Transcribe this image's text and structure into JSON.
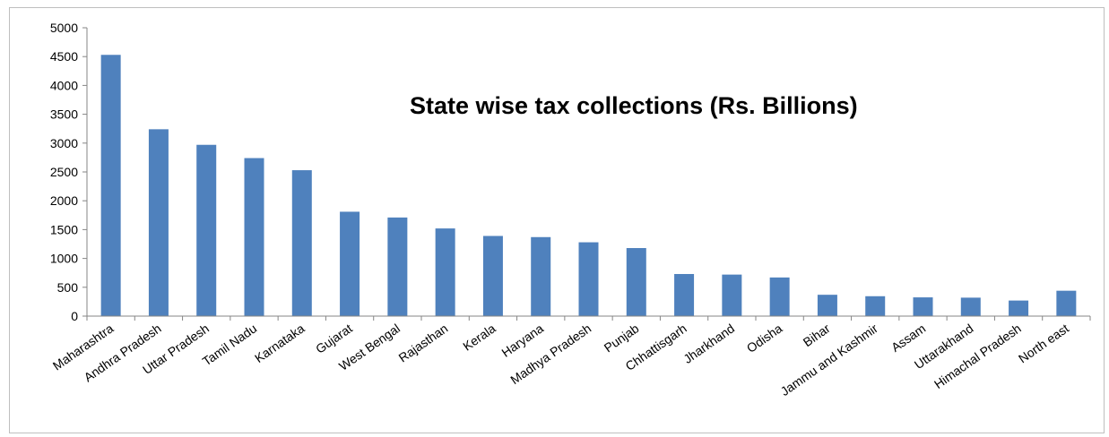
{
  "chart_data": {
    "type": "bar",
    "title": "State wise tax collections (Rs. Billions)",
    "xlabel": "",
    "ylabel": "",
    "ylim": [
      0,
      5000
    ],
    "yticks": [
      0,
      500,
      1000,
      1500,
      2000,
      2500,
      3000,
      3500,
      4000,
      4500,
      5000
    ],
    "grid": false,
    "legend": "none",
    "bar_color": "#4F81BD",
    "categories": [
      "Maharashtra",
      "Andhra Pradesh",
      "Uttar Pradesh",
      "Tamil Nadu",
      "Karnataka",
      "Gujarat",
      "West Bengal",
      "Rajasthan",
      "Kerala",
      "Haryana",
      "Madhya Pradesh",
      "Punjab",
      "Chhattisgarh",
      "Jharkhand",
      "Odisha",
      "Bihar",
      "Jammu and Kashmir",
      "Assam",
      "Uttarakhand",
      "Himachal Pradesh",
      "North east"
    ],
    "values": [
      4530,
      3240,
      2970,
      2740,
      2530,
      1810,
      1710,
      1520,
      1390,
      1370,
      1280,
      1180,
      730,
      720,
      670,
      370,
      345,
      325,
      320,
      270,
      440
    ]
  }
}
